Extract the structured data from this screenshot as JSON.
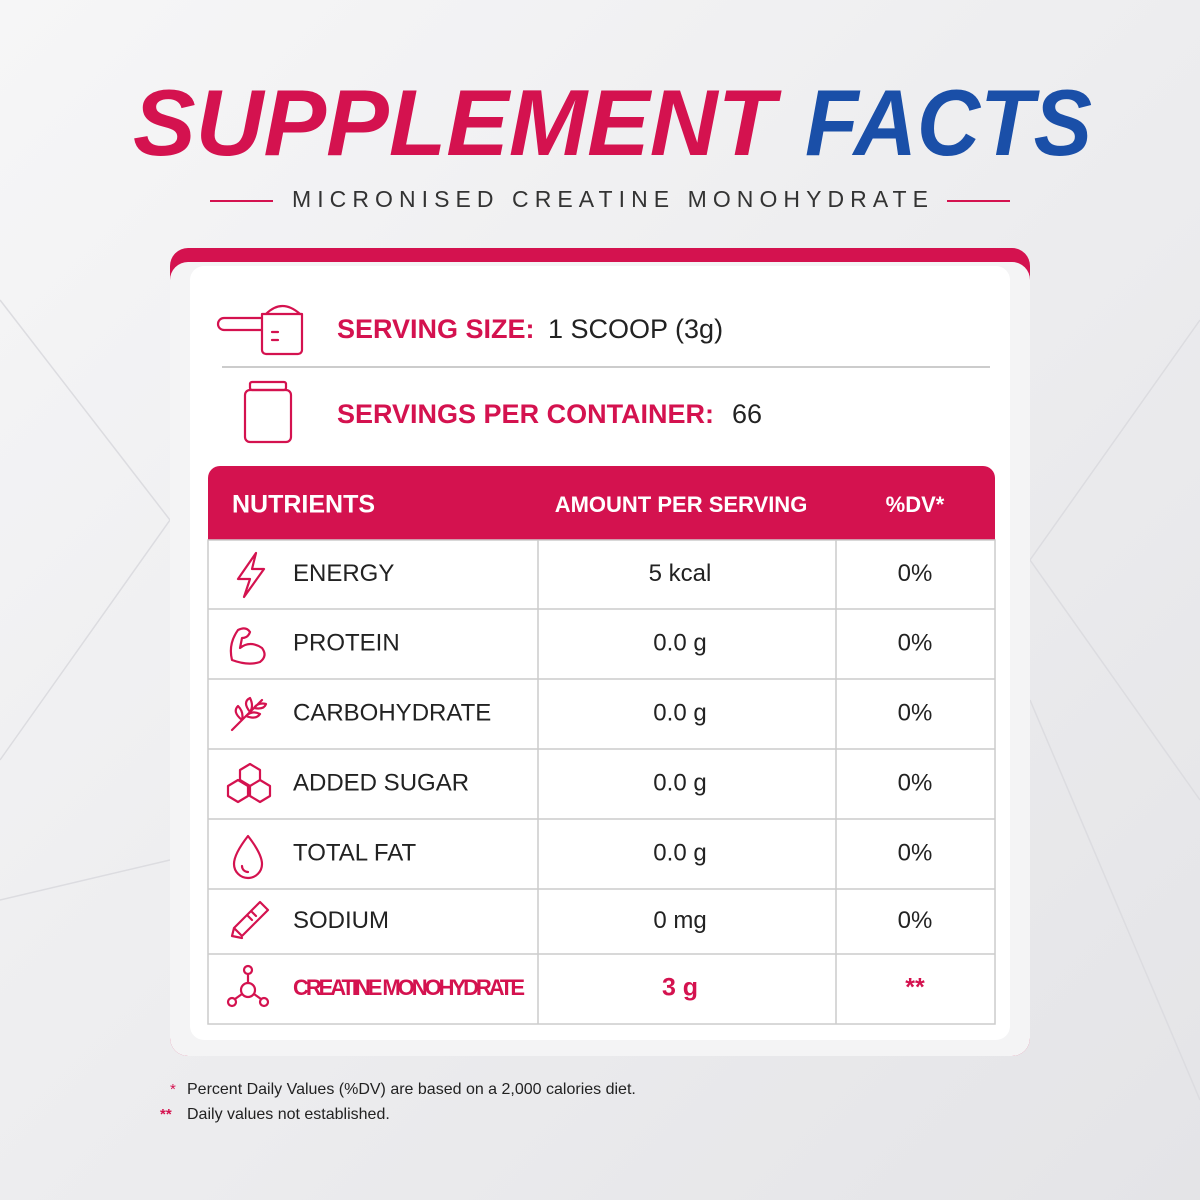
{
  "title": {
    "part1": "SUPPLEMENT",
    "part2": "FACTS"
  },
  "subtitle": "MICRONISED CREATINE MONOHYDRATE",
  "serving_size": {
    "label": "SERVING SIZE:",
    "value": "1 SCOOP (3g)"
  },
  "servings_per_container": {
    "label": "SERVINGS PER CONTAINER:",
    "value": "66"
  },
  "table": {
    "header": [
      "NUTRIENTS",
      "AMOUNT PER SERVING",
      "%DV*"
    ],
    "rows": [
      [
        "ENERGY",
        "5 kcal",
        "0%"
      ],
      [
        "PROTEIN",
        "0.0 g",
        "0%"
      ],
      [
        "CARBOHYDRATE",
        "0.0 g",
        "0%"
      ],
      [
        "ADDED SUGAR",
        "0.0 g",
        "0%"
      ],
      [
        "TOTAL FAT",
        "0.0 g",
        "0%"
      ],
      [
        "SODIUM",
        "0 mg",
        "0%"
      ],
      [
        "CREATINE MONOHYDRATE",
        "3 g",
        "**"
      ]
    ]
  },
  "footnotes": [
    {
      "mark": "*",
      "text": "Percent Daily Values (%DV) are based on a 2,000 calories diet."
    },
    {
      "mark": "**",
      "text": "Daily values not established."
    }
  ]
}
